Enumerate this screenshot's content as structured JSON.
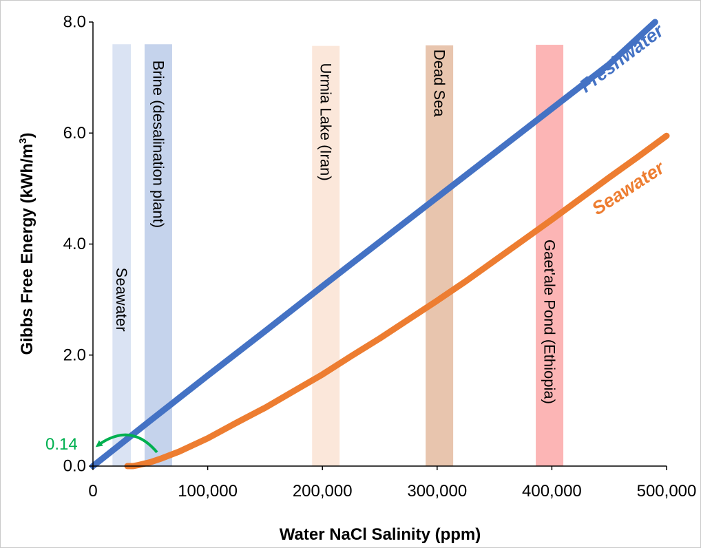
{
  "chart_data": {
    "type": "line",
    "title": "",
    "xlabel": "Water NaCl Salinity (ppm)",
    "ylabel_main": "Gibbs Free Energy (kWh/m",
    "ylabel_sup": "3",
    "ylabel_end": ")",
    "xlim": [
      0,
      500000
    ],
    "ylim": [
      0,
      8.0
    ],
    "x_ticks": [
      0,
      100000,
      200000,
      300000,
      400000,
      500000
    ],
    "x_tick_labels": [
      "0",
      "100,000",
      "200,000",
      "300,000",
      "400,000",
      "500,000"
    ],
    "y_ticks": [
      0,
      2,
      4,
      6,
      8
    ],
    "y_tick_labels": [
      "0.0",
      "2.0",
      "4.0",
      "6.0",
      "8.0"
    ],
    "grid": false,
    "series": [
      {
        "name": "Freshwater",
        "color": "#4472C4",
        "x": [
          0,
          50000,
          100000,
          150000,
          200000,
          250000,
          300000,
          350000,
          400000,
          450000,
          490000
        ],
        "y": [
          0,
          0.82,
          1.63,
          2.43,
          3.24,
          4.04,
          4.84,
          5.64,
          6.44,
          7.24,
          8.0
        ]
      },
      {
        "name": "Seawater",
        "color": "#ED7D31",
        "x": [
          30000,
          35000,
          40000,
          50000,
          60000,
          75000,
          100000,
          125000,
          150000,
          175000,
          200000,
          225000,
          250000,
          275000,
          300000,
          325000,
          350000,
          375000,
          400000,
          425000,
          450000,
          475000,
          500000
        ],
        "y": [
          0,
          0,
          0.02,
          0.07,
          0.14,
          0.26,
          0.5,
          0.78,
          1.05,
          1.35,
          1.65,
          1.98,
          2.3,
          2.64,
          2.98,
          3.33,
          3.7,
          4.07,
          4.44,
          4.82,
          5.2,
          5.57,
          5.95
        ]
      }
    ],
    "bands": [
      {
        "label": "Seawater",
        "x_start": 17000,
        "x_end": 33000,
        "y_top": 7.6,
        "color": "#DAE3F3",
        "label_y_center": 3.0
      },
      {
        "label": "Brine (desalination plant)",
        "x_start": 45000,
        "x_end": 69000,
        "y_top": 7.6,
        "color": "#C5D3EC",
        "label_y_center": 5.8
      },
      {
        "label": "Urmia Lake (Iran)",
        "x_start": 191000,
        "x_end": 215000,
        "y_top": 7.57,
        "color": "#FBE7DA",
        "label_y_center": 6.2
      },
      {
        "label": "Dead Sea",
        "x_start": 290000,
        "x_end": 314000,
        "y_top": 7.58,
        "color": "#E8C5AE",
        "label_y_center": 6.9
      },
      {
        "label": "Gaet'ale Pond (Ethiopia)",
        "x_start": 386000,
        "x_end": 410000,
        "y_top": 7.59,
        "color": "#FCB5B5",
        "label_y_center": 2.6
      }
    ],
    "annotations": [
      {
        "text": "0.14",
        "color": "#00B050",
        "y": 0.4
      }
    ]
  }
}
